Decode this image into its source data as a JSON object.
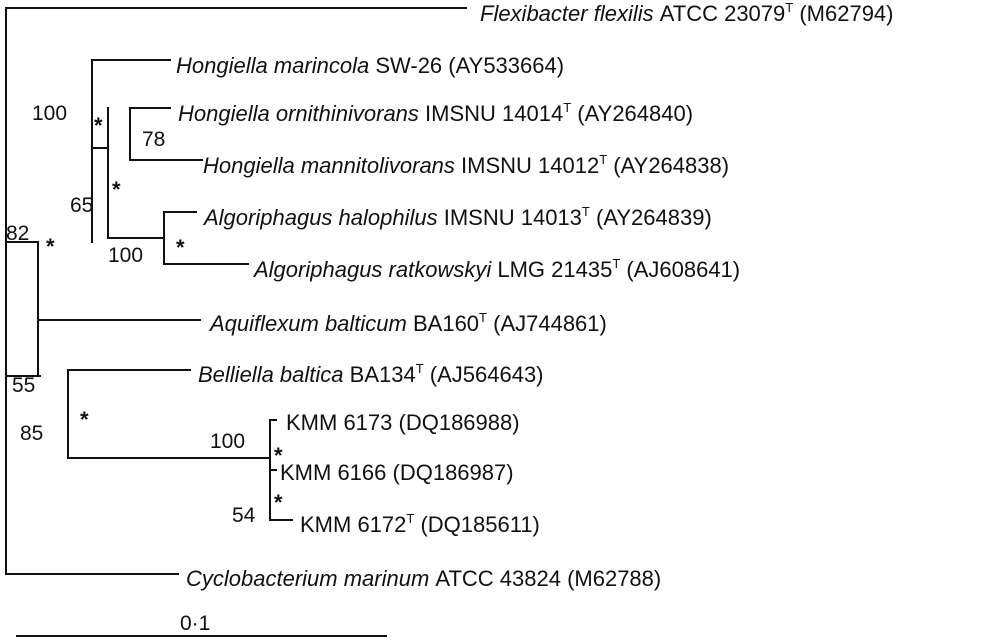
{
  "taxa": [
    {
      "name_italic": "Flexibacter flexilis",
      "name": "ATCC 23079",
      "type_strain": "T",
      "accession": "(M62794)"
    },
    {
      "name_italic": "Hongiella marincola",
      "name": "SW-26",
      "type_strain": "",
      "accession": "(AY533664)"
    },
    {
      "name_italic": "Hongiella ornithinivorans",
      "name": "IMSNU 14014",
      "type_strain": "T",
      "accession": "(AY264840)"
    },
    {
      "name_italic": "Hongiella mannitolivorans",
      "name": "IMSNU 14012",
      "type_strain": "T",
      "accession": "(AY264838)"
    },
    {
      "name_italic": "Algoriphagus halophilus",
      "name": "IMSNU 14013",
      "type_strain": "T",
      "accession": "(AY264839)"
    },
    {
      "name_italic": "Algoriphagus ratkowskyi",
      "name": "LMG 21435",
      "type_strain": "T",
      "accession": "(AJ608641)"
    },
    {
      "name_italic": "Aquiflexum balticum",
      "name": "BA160",
      "type_strain": "T",
      "accession": "(AJ744861)"
    },
    {
      "name_italic": "Belliella baltica",
      "name": "BA134",
      "type_strain": "T",
      "accession": "(AJ564643)"
    },
    {
      "name_italic": "",
      "name": "KMM 6173",
      "type_strain": "",
      "accession": "(DQ186988)"
    },
    {
      "name_italic": "",
      "name": "KMM 6166",
      "type_strain": "",
      "accession": "(DQ186987)"
    },
    {
      "name_italic": "",
      "name": "KMM 6172",
      "type_strain": "T",
      "accession": "(DQ185611)"
    },
    {
      "name_italic": "Cyclobacterium marinum",
      "name": "ATCC 43824",
      "type_strain": "",
      "accession": "(M62788)"
    }
  ],
  "bootstrap_values": [
    "100",
    "78",
    "65",
    "100",
    "82",
    "55",
    "85",
    "100",
    "54"
  ],
  "asterisk_marker": "*",
  "scale_bar_label": "0·1"
}
